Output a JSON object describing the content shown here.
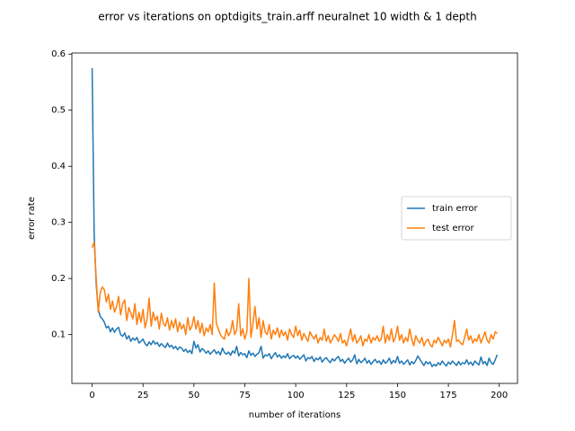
{
  "chart_data": {
    "type": "line",
    "title": "error vs iterations on optdigits_train.arff neuralnet 10 width & 1 depth",
    "xlabel": "number of iterations",
    "ylabel": "error rate",
    "x": [
      0,
      1,
      2,
      3,
      4,
      5,
      6,
      7,
      8,
      9,
      10,
      11,
      12,
      13,
      14,
      15,
      16,
      17,
      18,
      19,
      20,
      21,
      22,
      23,
      24,
      25,
      26,
      27,
      28,
      29,
      30,
      31,
      32,
      33,
      34,
      35,
      36,
      37,
      38,
      39,
      40,
      41,
      42,
      43,
      44,
      45,
      46,
      47,
      48,
      49,
      50,
      51,
      52,
      53,
      54,
      55,
      56,
      57,
      58,
      59,
      60,
      61,
      62,
      63,
      64,
      65,
      66,
      67,
      68,
      69,
      70,
      71,
      72,
      73,
      74,
      75,
      76,
      77,
      78,
      79,
      80,
      81,
      82,
      83,
      84,
      85,
      86,
      87,
      88,
      89,
      90,
      91,
      92,
      93,
      94,
      95,
      96,
      97,
      98,
      99,
      100,
      101,
      102,
      103,
      104,
      105,
      106,
      107,
      108,
      109,
      110,
      111,
      112,
      113,
      114,
      115,
      116,
      117,
      118,
      119,
      120,
      121,
      122,
      123,
      124,
      125,
      126,
      127,
      128,
      129,
      130,
      131,
      132,
      133,
      134,
      135,
      136,
      137,
      138,
      139,
      140,
      141,
      142,
      143,
      144,
      145,
      146,
      147,
      148,
      149,
      150,
      151,
      152,
      153,
      154,
      155,
      156,
      157,
      158,
      159,
      160,
      161,
      162,
      163,
      164,
      165,
      166,
      167,
      168,
      169,
      170,
      171,
      172,
      173,
      174,
      175,
      176,
      177,
      178,
      179,
      180,
      181,
      182,
      183,
      184,
      185,
      186,
      187,
      188,
      189,
      190,
      191,
      192,
      193,
      194,
      195,
      196,
      197,
      198,
      199
    ],
    "series": [
      {
        "name": "train error",
        "color": "#1f77b4",
        "values": [
          0.575,
          0.28,
          0.19,
          0.145,
          0.132,
          0.128,
          0.122,
          0.112,
          0.115,
          0.105,
          0.112,
          0.104,
          0.11,
          0.113,
          0.1,
          0.097,
          0.103,
          0.092,
          0.098,
          0.088,
          0.094,
          0.09,
          0.095,
          0.085,
          0.088,
          0.092,
          0.084,
          0.08,
          0.087,
          0.082,
          0.089,
          0.083,
          0.086,
          0.079,
          0.084,
          0.08,
          0.077,
          0.085,
          0.078,
          0.081,
          0.075,
          0.079,
          0.073,
          0.078,
          0.076,
          0.07,
          0.074,
          0.068,
          0.072,
          0.066,
          0.088,
          0.076,
          0.082,
          0.069,
          0.075,
          0.072,
          0.067,
          0.071,
          0.065,
          0.069,
          0.073,
          0.066,
          0.07,
          0.064,
          0.076,
          0.068,
          0.065,
          0.069,
          0.063,
          0.071,
          0.067,
          0.079,
          0.062,
          0.068,
          0.064,
          0.066,
          0.059,
          0.071,
          0.063,
          0.067,
          0.061,
          0.065,
          0.068,
          0.079,
          0.058,
          0.064,
          0.062,
          0.066,
          0.057,
          0.063,
          0.068,
          0.06,
          0.064,
          0.058,
          0.062,
          0.059,
          0.066,
          0.057,
          0.061,
          0.063,
          0.058,
          0.062,
          0.056,
          0.06,
          0.064,
          0.053,
          0.059,
          0.057,
          0.061,
          0.052,
          0.058,
          0.055,
          0.06,
          0.051,
          0.056,
          0.059,
          0.054,
          0.05,
          0.057,
          0.053,
          0.058,
          0.061,
          0.052,
          0.056,
          0.049,
          0.054,
          0.058,
          0.051,
          0.055,
          0.064,
          0.048,
          0.056,
          0.05,
          0.053,
          0.058,
          0.049,
          0.054,
          0.047,
          0.052,
          0.056,
          0.05,
          0.053,
          0.047,
          0.055,
          0.049,
          0.052,
          0.058,
          0.048,
          0.054,
          0.05,
          0.061,
          0.049,
          0.053,
          0.047,
          0.051,
          0.055,
          0.046,
          0.052,
          0.048,
          0.054,
          0.062,
          0.056,
          0.05,
          0.045,
          0.052,
          0.048,
          0.051,
          0.043,
          0.047,
          0.044,
          0.05,
          0.046,
          0.053,
          0.048,
          0.044,
          0.051,
          0.047,
          0.053,
          0.049,
          0.045,
          0.052,
          0.046,
          0.05,
          0.048,
          0.055,
          0.047,
          0.051,
          0.045,
          0.053,
          0.049,
          0.046,
          0.06,
          0.048,
          0.052,
          0.045,
          0.058,
          0.05,
          0.047,
          0.055,
          0.064
        ]
      },
      {
        "name": "test error",
        "color": "#ff7f0e",
        "values": [
          0.255,
          0.265,
          0.2,
          0.14,
          0.175,
          0.185,
          0.18,
          0.158,
          0.172,
          0.145,
          0.16,
          0.14,
          0.15,
          0.168,
          0.135,
          0.155,
          0.162,
          0.125,
          0.148,
          0.138,
          0.128,
          0.155,
          0.118,
          0.14,
          0.122,
          0.145,
          0.112,
          0.128,
          0.165,
          0.115,
          0.14,
          0.125,
          0.133,
          0.11,
          0.138,
          0.12,
          0.115,
          0.13,
          0.108,
          0.125,
          0.112,
          0.128,
          0.105,
          0.122,
          0.11,
          0.118,
          0.1,
          0.13,
          0.108,
          0.115,
          0.132,
          0.11,
          0.125,
          0.103,
          0.12,
          0.098,
          0.112,
          0.105,
          0.118,
          0.1,
          0.192,
          0.12,
          0.11,
          0.1,
          0.095,
          0.092,
          0.11,
          0.098,
          0.105,
          0.125,
          0.1,
          0.108,
          0.155,
          0.098,
          0.11,
          0.092,
          0.105,
          0.2,
          0.095,
          0.12,
          0.15,
          0.11,
          0.13,
          0.095,
          0.125,
          0.105,
          0.1,
          0.118,
          0.092,
          0.108,
          0.1,
          0.112,
          0.095,
          0.108,
          0.098,
          0.105,
          0.09,
          0.11,
          0.1,
          0.095,
          0.115,
          0.098,
          0.108,
          0.09,
          0.102,
          0.095,
          0.088,
          0.105,
          0.098,
          0.092,
          0.1,
          0.085,
          0.095,
          0.09,
          0.11,
          0.088,
          0.098,
          0.085,
          0.092,
          0.1,
          0.095,
          0.088,
          0.102,
          0.085,
          0.09,
          0.08,
          0.095,
          0.11,
          0.088,
          0.1,
          0.085,
          0.09,
          0.098,
          0.08,
          0.092,
          0.088,
          0.1,
          0.085,
          0.095,
          0.09,
          0.098,
          0.088,
          0.092,
          0.115,
          0.085,
          0.1,
          0.09,
          0.11,
          0.087,
          0.095,
          0.115,
          0.09,
          0.1,
          0.085,
          0.095,
          0.088,
          0.11,
          0.092,
          0.08,
          0.098,
          0.09,
          0.085,
          0.095,
          0.08,
          0.088,
          0.092,
          0.082,
          0.078,
          0.09,
          0.085,
          0.095,
          0.088,
          0.08,
          0.09,
          0.085,
          0.092,
          0.078,
          0.1,
          0.125,
          0.088,
          0.09,
          0.085,
          0.082,
          0.095,
          0.11,
          0.09,
          0.098,
          0.085,
          0.092,
          0.088,
          0.1,
          0.085,
          0.095,
          0.105,
          0.09,
          0.085,
          0.1,
          0.092,
          0.105,
          0.102
        ]
      }
    ],
    "xlim": [
      -9.95,
      208.95
    ],
    "xticks": [
      0,
      25,
      50,
      75,
      100,
      125,
      150,
      175,
      200
    ],
    "ylim": [
      0.013,
      0.602
    ],
    "yticks": [
      0.1,
      0.2,
      0.3,
      0.4,
      0.5,
      0.6
    ],
    "legend": "center right"
  }
}
